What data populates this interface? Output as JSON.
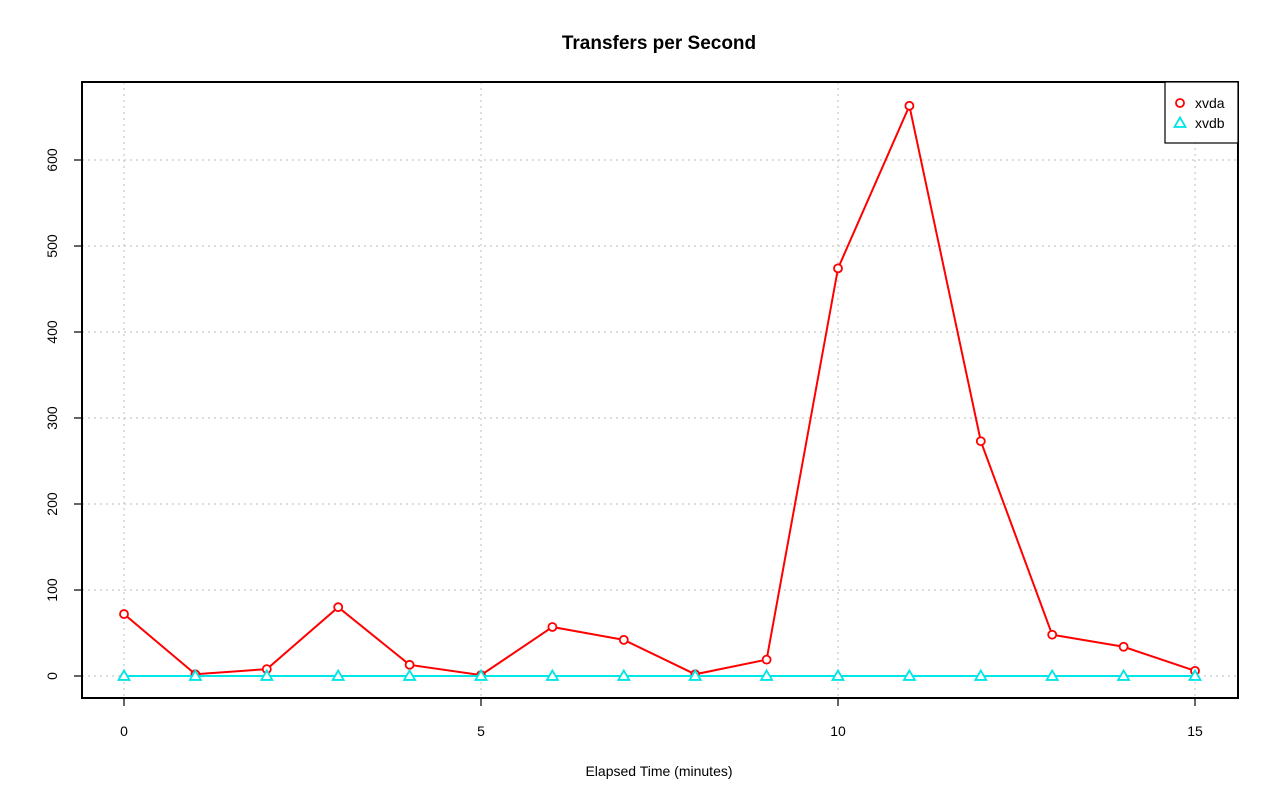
{
  "chart_data": {
    "type": "line",
    "title": "Transfers per Second",
    "xlabel": "Elapsed Time (minutes)",
    "ylabel": "",
    "xlim": [
      0,
      15
    ],
    "ylim": [
      0,
      680
    ],
    "x_ticks": [
      0,
      5,
      10,
      15
    ],
    "y_ticks": [
      0,
      100,
      200,
      300,
      400,
      500,
      600
    ],
    "grid": true,
    "legend_position": "top-right",
    "x": [
      0,
      1,
      2,
      3,
      4,
      5,
      6,
      7,
      8,
      9,
      10,
      11,
      12,
      13,
      14,
      15
    ],
    "series": [
      {
        "name": "xvda",
        "color": "#ff0000",
        "marker": "circle",
        "values": [
          72,
          2,
          8,
          80,
          13,
          1,
          57,
          42,
          2,
          19,
          474,
          663,
          273,
          48,
          34,
          6
        ]
      },
      {
        "name": "xvdb",
        "color": "#00e5e5",
        "marker": "triangle",
        "values": [
          0,
          0,
          0,
          0,
          0,
          0,
          0,
          0,
          0,
          0,
          0,
          0,
          0,
          0,
          0,
          0
        ]
      }
    ]
  }
}
